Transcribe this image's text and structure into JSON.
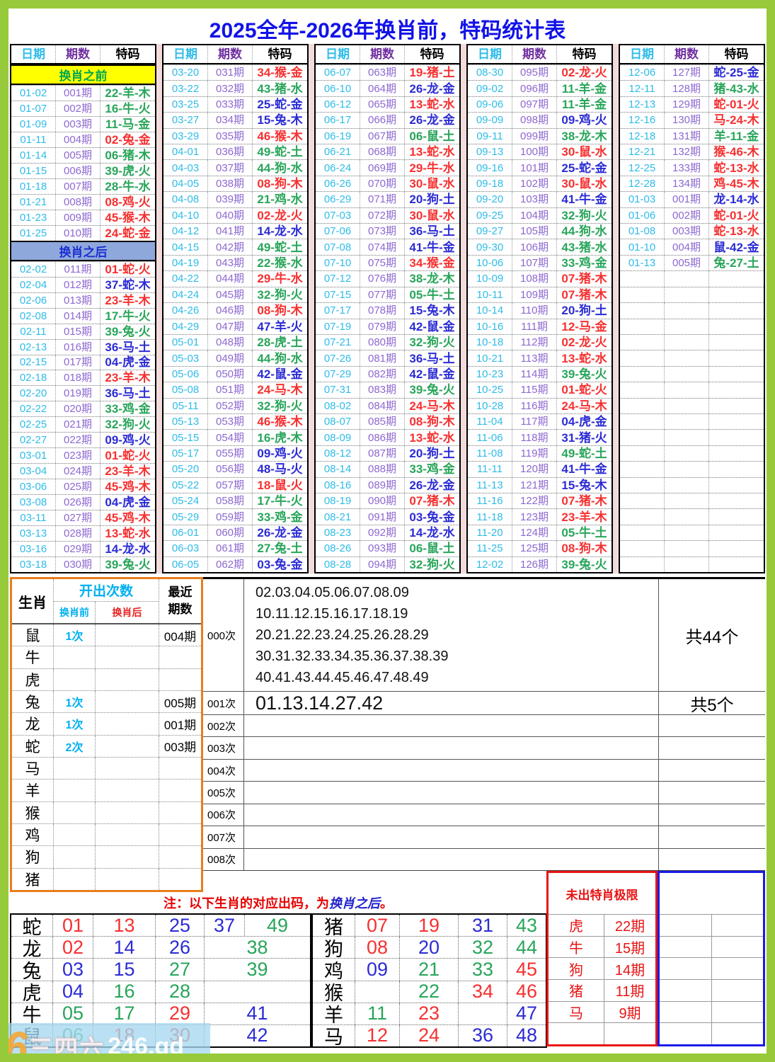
{
  "title": "2025全年-2026年换肖前，特码统计表",
  "table_headers": {
    "date": "日期",
    "period": "期数",
    "code": "特码"
  },
  "sections": {
    "before": "换肖之前",
    "after": "换肖之后"
  },
  "colors": {
    "frame_green": "#97ca3a",
    "title_blue": "#1212e8",
    "date_cyan": "#2fbce8",
    "period_purple": "#8d68d0",
    "code_red": "#f63030",
    "code_green": "#28a55a",
    "code_blue": "#2b2bd4",
    "before_bg": "#ffff00",
    "after_bg": "#8fa8dc",
    "orange_border": "#e87d1e",
    "red_border": "#e81414",
    "blue_border": "#1a1ae8"
  },
  "columns": [
    {
      "rows": [
        [
          "§",
          "before"
        ],
        [
          "01-02",
          "001期",
          "22-羊-木",
          "g"
        ],
        [
          "01-07",
          "002期",
          "16-牛-火",
          "g"
        ],
        [
          "01-09",
          "003期",
          "11-马-金",
          "g"
        ],
        [
          "01-11",
          "004期",
          "02-兔-金",
          "r"
        ],
        [
          "01-14",
          "005期",
          "06-猪-木",
          "g"
        ],
        [
          "01-15",
          "006期",
          "39-虎-火",
          "g"
        ],
        [
          "01-18",
          "007期",
          "28-牛-水",
          "g"
        ],
        [
          "01-21",
          "008期",
          "08-鸡-火",
          "r"
        ],
        [
          "01-23",
          "009期",
          "45-猴-木",
          "r"
        ],
        [
          "01-25",
          "010期",
          "24-蛇-金",
          "r"
        ],
        [
          "§",
          "after"
        ],
        [
          "02-02",
          "011期",
          "01-蛇-火",
          "r"
        ],
        [
          "02-04",
          "012期",
          "37-蛇-木",
          "b"
        ],
        [
          "02-06",
          "013期",
          "23-羊-木",
          "r"
        ],
        [
          "02-08",
          "014期",
          "17-牛-火",
          "g"
        ],
        [
          "02-11",
          "015期",
          "39-兔-火",
          "g"
        ],
        [
          "02-13",
          "016期",
          "36-马-土",
          "b"
        ],
        [
          "02-15",
          "017期",
          "04-虎-金",
          "b"
        ],
        [
          "02-18",
          "018期",
          "23-羊-木",
          "r"
        ],
        [
          "02-20",
          "019期",
          "36-马-土",
          "b"
        ],
        [
          "02-22",
          "020期",
          "33-鸡-金",
          "g"
        ],
        [
          "02-25",
          "021期",
          "32-狗-火",
          "g"
        ],
        [
          "02-27",
          "022期",
          "09-鸡-火",
          "b"
        ],
        [
          "03-01",
          "023期",
          "01-蛇-火",
          "r"
        ],
        [
          "03-04",
          "024期",
          "23-羊-木",
          "r"
        ],
        [
          "03-06",
          "025期",
          "45-鸡-木",
          "r"
        ],
        [
          "03-08",
          "026期",
          "04-虎-金",
          "b"
        ],
        [
          "03-11",
          "027期",
          "45-鸡-木",
          "r"
        ],
        [
          "03-13",
          "028期",
          "13-蛇-水",
          "r"
        ],
        [
          "03-16",
          "029期",
          "14-龙-水",
          "b"
        ],
        [
          "03-18",
          "030期",
          "39-兔-火",
          "g"
        ]
      ]
    },
    {
      "rows": [
        [
          "03-20",
          "031期",
          "34-猴-金",
          "r"
        ],
        [
          "03-22",
          "032期",
          "43-猪-水",
          "g"
        ],
        [
          "03-25",
          "033期",
          "25-蛇-金",
          "b"
        ],
        [
          "03-27",
          "034期",
          "15-兔-木",
          "b"
        ],
        [
          "03-29",
          "035期",
          "46-猴-木",
          "r"
        ],
        [
          "04-01",
          "036期",
          "49-蛇-土",
          "g"
        ],
        [
          "04-03",
          "037期",
          "44-狗-水",
          "g"
        ],
        [
          "04-05",
          "038期",
          "08-狗-木",
          "r"
        ],
        [
          "04-08",
          "039期",
          "21-鸡-水",
          "g"
        ],
        [
          "04-10",
          "040期",
          "02-龙-火",
          "r"
        ],
        [
          "04-12",
          "041期",
          "14-龙-水",
          "b"
        ],
        [
          "04-15",
          "042期",
          "49-蛇-土",
          "g"
        ],
        [
          "04-19",
          "043期",
          "22-猴-水",
          "g"
        ],
        [
          "04-22",
          "044期",
          "29-牛-水",
          "r"
        ],
        [
          "04-24",
          "045期",
          "32-狗-火",
          "g"
        ],
        [
          "04-26",
          "046期",
          "08-狗-木",
          "r"
        ],
        [
          "04-29",
          "047期",
          "47-羊-火",
          "b"
        ],
        [
          "05-01",
          "048期",
          "28-虎-土",
          "g"
        ],
        [
          "05-03",
          "049期",
          "44-狗-水",
          "g"
        ],
        [
          "05-06",
          "050期",
          "42-鼠-金",
          "b"
        ],
        [
          "05-08",
          "051期",
          "24-马-木",
          "r"
        ],
        [
          "05-11",
          "052期",
          "32-狗-火",
          "g"
        ],
        [
          "05-13",
          "053期",
          "46-猴-木",
          "r"
        ],
        [
          "05-15",
          "054期",
          "16-虎-木",
          "g"
        ],
        [
          "05-17",
          "055期",
          "09-鸡-火",
          "b"
        ],
        [
          "05-20",
          "056期",
          "48-马-火",
          "b"
        ],
        [
          "05-22",
          "057期",
          "18-鼠-火",
          "r"
        ],
        [
          "05-24",
          "058期",
          "17-牛-火",
          "g"
        ],
        [
          "05-29",
          "059期",
          "33-鸡-金",
          "g"
        ],
        [
          "06-01",
          "060期",
          "26-龙-金",
          "b"
        ],
        [
          "06-03",
          "061期",
          "27-兔-土",
          "g"
        ],
        [
          "06-05",
          "062期",
          "03-兔-金",
          "b"
        ]
      ]
    },
    {
      "rows": [
        [
          "06-07",
          "063期",
          "19-猪-土",
          "r"
        ],
        [
          "06-10",
          "064期",
          "26-龙-金",
          "b"
        ],
        [
          "06-12",
          "065期",
          "13-蛇-水",
          "r"
        ],
        [
          "06-17",
          "066期",
          "26-龙-金",
          "b"
        ],
        [
          "06-19",
          "067期",
          "06-鼠-土",
          "g"
        ],
        [
          "06-21",
          "068期",
          "13-蛇-水",
          "r"
        ],
        [
          "06-24",
          "069期",
          "29-牛-水",
          "r"
        ],
        [
          "06-26",
          "070期",
          "30-鼠-水",
          "r"
        ],
        [
          "06-29",
          "071期",
          "20-狗-土",
          "b"
        ],
        [
          "07-03",
          "072期",
          "30-鼠-水",
          "r"
        ],
        [
          "07-06",
          "073期",
          "36-马-土",
          "b"
        ],
        [
          "07-08",
          "074期",
          "41-牛-金",
          "b"
        ],
        [
          "07-10",
          "075期",
          "34-猴-金",
          "r"
        ],
        [
          "07-12",
          "076期",
          "38-龙-木",
          "g"
        ],
        [
          "07-15",
          "077期",
          "05-牛-土",
          "g"
        ],
        [
          "07-17",
          "078期",
          "15-兔-木",
          "b"
        ],
        [
          "07-19",
          "079期",
          "42-鼠-金",
          "b"
        ],
        [
          "07-21",
          "080期",
          "32-狗-火",
          "g"
        ],
        [
          "07-26",
          "081期",
          "36-马-土",
          "b"
        ],
        [
          "07-29",
          "082期",
          "42-鼠-金",
          "b"
        ],
        [
          "07-31",
          "083期",
          "39-兔-火",
          "g"
        ],
        [
          "08-02",
          "084期",
          "24-马-木",
          "r"
        ],
        [
          "08-07",
          "085期",
          "08-狗-木",
          "r"
        ],
        [
          "08-09",
          "086期",
          "13-蛇-水",
          "r"
        ],
        [
          "08-12",
          "087期",
          "20-狗-土",
          "b"
        ],
        [
          "08-14",
          "088期",
          "33-鸡-金",
          "g"
        ],
        [
          "08-16",
          "089期",
          "26-龙-金",
          "b"
        ],
        [
          "08-19",
          "090期",
          "07-猪-木",
          "r"
        ],
        [
          "08-21",
          "091期",
          "03-兔-金",
          "b"
        ],
        [
          "08-23",
          "092期",
          "14-龙-水",
          "b"
        ],
        [
          "08-26",
          "093期",
          "06-鼠-土",
          "g"
        ],
        [
          "08-28",
          "094期",
          "32-狗-火",
          "g"
        ]
      ]
    },
    {
      "rows": [
        [
          "08-30",
          "095期",
          "02-龙-火",
          "r"
        ],
        [
          "09-02",
          "096期",
          "11-羊-金",
          "g"
        ],
        [
          "09-06",
          "097期",
          "11-羊-金",
          "g"
        ],
        [
          "09-09",
          "098期",
          "09-鸡-火",
          "b"
        ],
        [
          "09-11",
          "099期",
          "38-龙-木",
          "g"
        ],
        [
          "09-13",
          "100期",
          "30-鼠-水",
          "r"
        ],
        [
          "09-16",
          "101期",
          "25-蛇-金",
          "b"
        ],
        [
          "09-18",
          "102期",
          "30-鼠-水",
          "r"
        ],
        [
          "09-20",
          "103期",
          "41-牛-金",
          "b"
        ],
        [
          "09-25",
          "104期",
          "32-狗-火",
          "g"
        ],
        [
          "09-27",
          "105期",
          "44-狗-水",
          "g"
        ],
        [
          "09-30",
          "106期",
          "43-猪-水",
          "g"
        ],
        [
          "10-06",
          "107期",
          "33-鸡-金",
          "g"
        ],
        [
          "10-09",
          "108期",
          "07-猪-木",
          "r"
        ],
        [
          "10-11",
          "109期",
          "07-猪-木",
          "r"
        ],
        [
          "10-14",
          "110期",
          "20-狗-土",
          "b"
        ],
        [
          "10-16",
          "111期",
          "12-马-金",
          "r"
        ],
        [
          "10-18",
          "112期",
          "02-龙-火",
          "r"
        ],
        [
          "10-21",
          "113期",
          "13-蛇-水",
          "r"
        ],
        [
          "10-23",
          "114期",
          "39-兔-火",
          "g"
        ],
        [
          "10-25",
          "115期",
          "01-蛇-火",
          "r"
        ],
        [
          "10-28",
          "116期",
          "24-马-木",
          "r"
        ],
        [
          "11-04",
          "117期",
          "04-虎-金",
          "b"
        ],
        [
          "11-06",
          "118期",
          "31-猪-火",
          "b"
        ],
        [
          "11-08",
          "119期",
          "49-蛇-土",
          "g"
        ],
        [
          "11-11",
          "120期",
          "41-牛-金",
          "b"
        ],
        [
          "11-13",
          "121期",
          "15-兔-木",
          "b"
        ],
        [
          "11-16",
          "122期",
          "07-猪-木",
          "r"
        ],
        [
          "11-18",
          "123期",
          "23-羊-木",
          "r"
        ],
        [
          "11-20",
          "124期",
          "05-牛-土",
          "g"
        ],
        [
          "11-25",
          "125期",
          "08-狗-木",
          "r"
        ],
        [
          "12-02",
          "126期",
          "39-兔-火",
          "g"
        ]
      ]
    },
    {
      "rows": [
        [
          "12-06",
          "127期",
          "蛇-25-金",
          "b"
        ],
        [
          "12-11",
          "128期",
          "猪-43-水",
          "g"
        ],
        [
          "12-13",
          "129期",
          "蛇-01-火",
          "r"
        ],
        [
          "12-16",
          "130期",
          "马-24-木",
          "r"
        ],
        [
          "12-18",
          "131期",
          "羊-11-金",
          "g"
        ],
        [
          "12-21",
          "132期",
          "猴-46-木",
          "r"
        ],
        [
          "12-25",
          "133期",
          "蛇-13-水",
          "r"
        ],
        [
          "12-28",
          "134期",
          "鸡-45-木",
          "r"
        ],
        [
          "01-03",
          "001期",
          "龙-14-水",
          "b"
        ],
        [
          "01-06",
          "002期",
          "蛇-01-火",
          "r"
        ],
        [
          "01-08",
          "003期",
          "蛇-13-水",
          "r"
        ],
        [
          "01-10",
          "004期",
          "鼠-42-金",
          "b"
        ],
        [
          "01-13",
          "005期",
          "兔-27-土",
          "g"
        ],
        [],
        [],
        [],
        [],
        [],
        [],
        [],
        [],
        [],
        [],
        [],
        [],
        [],
        [],
        [],
        [],
        [],
        [],
        []
      ]
    }
  ],
  "stats": {
    "header": {
      "zodiac": "生肖",
      "times": "开出次数",
      "before": "换肖前",
      "after": "换肖后",
      "recent1": "最近",
      "recent2": "期数"
    },
    "rows": [
      [
        "鼠",
        "1次",
        "",
        "004期"
      ],
      [
        "牛",
        "",
        "",
        ""
      ],
      [
        "虎",
        "",
        "",
        ""
      ],
      [
        "兔",
        "1次",
        "",
        "005期"
      ],
      [
        "龙",
        "1次",
        "",
        "001期"
      ],
      [
        "蛇",
        "2次",
        "",
        "003期"
      ],
      [
        "马",
        "",
        "",
        ""
      ],
      [
        "羊",
        "",
        "",
        ""
      ],
      [
        "猴",
        "",
        "",
        ""
      ],
      [
        "鸡",
        "",
        "",
        ""
      ],
      [
        "狗",
        "",
        "",
        ""
      ],
      [
        "猪",
        "",
        "",
        ""
      ]
    ]
  },
  "counts": {
    "rows": [
      {
        "label": "000次",
        "lines": [
          "02.03.04.05.06.07.08.09",
          "10.11.12.15.16.17.18.19",
          "20.21.22.23.24.25.26.28.29",
          "30.31.32.33.34.35.36.37.38.39",
          "40.41.43.44.45.46.47.48.49"
        ],
        "total": "共44个",
        "h": 158
      },
      {
        "label": "001次",
        "lines": [
          "01.13.14.27.42"
        ],
        "total": "共5个",
        "h": 32,
        "big": true
      },
      {
        "label": "002次",
        "lines": [],
        "total": ""
      },
      {
        "label": "003次",
        "lines": [],
        "total": ""
      },
      {
        "label": "004次",
        "lines": [],
        "total": ""
      },
      {
        "label": "005次",
        "lines": [],
        "total": ""
      },
      {
        "label": "006次",
        "lines": [],
        "total": ""
      },
      {
        "label": "007次",
        "lines": [],
        "total": ""
      },
      {
        "label": "008次",
        "lines": [],
        "total": ""
      }
    ]
  },
  "note": {
    "red1": "注：以下生肖的对应出码，为",
    "blue": "换肖之后",
    "red2": "。"
  },
  "mapping_left": [
    {
      "z": "蛇",
      "cells": [
        [
          "01",
          "r"
        ],
        [
          "13",
          "r"
        ],
        [
          "25",
          "b"
        ],
        [
          "37",
          "b"
        ],
        [
          "49",
          "g"
        ]
      ],
      "split": true
    },
    {
      "z": "龙",
      "cells": [
        [
          "02",
          "r"
        ],
        [
          "14",
          "b"
        ],
        [
          "26",
          "b"
        ],
        [
          "38",
          "g"
        ]
      ]
    },
    {
      "z": "兔",
      "cells": [
        [
          "03",
          "b"
        ],
        [
          "15",
          "b"
        ],
        [
          "27",
          "g"
        ],
        [
          "39",
          "g"
        ]
      ]
    },
    {
      "z": "虎",
      "cells": [
        [
          "04",
          "b"
        ],
        [
          "16",
          "g"
        ],
        [
          "28",
          "g"
        ],
        [
          "",
          ""
        ]
      ]
    },
    {
      "z": "牛",
      "cells": [
        [
          "05",
          "g"
        ],
        [
          "17",
          "g"
        ],
        [
          "29",
          "r"
        ],
        [
          "41",
          "b"
        ]
      ]
    },
    {
      "z": "鼠",
      "cells": [
        [
          "06",
          "g"
        ],
        [
          "18",
          "r"
        ],
        [
          "30",
          "r"
        ],
        [
          "42",
          "b"
        ]
      ]
    }
  ],
  "mapping_right": [
    {
      "z": "猪",
      "cells": [
        [
          "07",
          "r"
        ],
        [
          "19",
          "r"
        ],
        [
          "31",
          "b"
        ],
        [
          "43",
          "g"
        ]
      ]
    },
    {
      "z": "狗",
      "cells": [
        [
          "08",
          "r"
        ],
        [
          "20",
          "b"
        ],
        [
          "32",
          "g"
        ],
        [
          "44",
          "g"
        ]
      ]
    },
    {
      "z": "鸡",
      "cells": [
        [
          "09",
          "b"
        ],
        [
          "21",
          "g"
        ],
        [
          "33",
          "g"
        ],
        [
          "45",
          "r"
        ]
      ]
    },
    {
      "z": "猴",
      "cells": [
        [
          "",
          ""
        ],
        [
          "22",
          "g"
        ],
        [
          "34",
          "r"
        ],
        [
          "46",
          "r"
        ]
      ]
    },
    {
      "z": "羊",
      "cells": [
        [
          "11",
          "g"
        ],
        [
          "23",
          "r"
        ],
        [
          "",
          ""
        ],
        [
          "47",
          "b"
        ]
      ]
    },
    {
      "z": "马",
      "cells": [
        [
          "12",
          "r"
        ],
        [
          "24",
          "r"
        ],
        [
          "36",
          "b"
        ],
        [
          "48",
          "b"
        ]
      ]
    }
  ],
  "limit_box": {
    "title": "未出特肖极限",
    "rows": [
      [
        "虎",
        "22期"
      ],
      [
        "牛",
        "15期"
      ],
      [
        "狗",
        "14期"
      ],
      [
        "猪",
        "11期"
      ],
      [
        "马",
        "9期"
      ],
      [
        "",
        ""
      ]
    ]
  },
  "watermark": {
    "logo": "6",
    "deco": "三四六",
    "text": "246.gd"
  }
}
